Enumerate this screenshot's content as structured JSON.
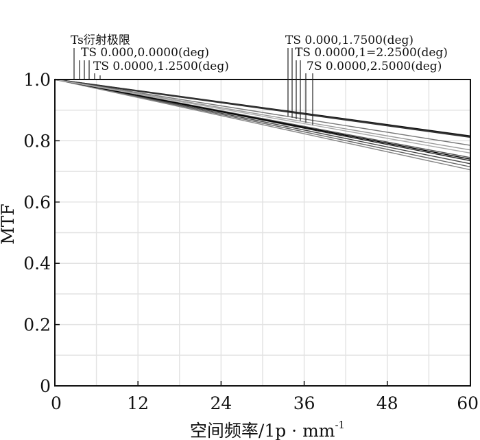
{
  "chart_data": {
    "type": "line",
    "title": "",
    "xlabel": "空间频率/1p · mm",
    "xlabel_superscript": "-1",
    "ylabel": "MTF",
    "xlim": [
      0,
      60
    ],
    "ylim": [
      0,
      1.0
    ],
    "x_ticks": [
      0,
      12,
      24,
      36,
      48,
      60
    ],
    "x_tick_labels": [
      "0",
      "12",
      "24",
      "36",
      "48",
      "60"
    ],
    "y_ticks": [
      0,
      0.2,
      0.4,
      0.6,
      0.8,
      1.0
    ],
    "y_tick_labels": [
      "0",
      "0.2",
      "0.4",
      "0.6",
      "0.8",
      "1.0"
    ],
    "grid": true,
    "legend_position": "top",
    "legend_left": [
      "Ts衍射极限",
      "TS 0.000,0.0000(deg)",
      "TS 0.0000,1.2500(deg)"
    ],
    "legend_right": [
      "TS 0.000,1.7500(deg)",
      "TS 0.0000,1=2.2500(deg)",
      "7S 0.0000,2.5000(deg)"
    ],
    "series": [
      {
        "x": [
          0,
          60
        ],
        "y": [
          1.0,
          0.815
        ],
        "color": "#111111"
      },
      {
        "x": [
          0,
          60
        ],
        "y": [
          1.0,
          0.812
        ],
        "color": "#333333"
      },
      {
        "x": [
          0,
          60
        ],
        "y": [
          1.0,
          0.785
        ],
        "color": "#777777"
      },
      {
        "x": [
          0,
          60
        ],
        "y": [
          1.0,
          0.77
        ],
        "color": "#999999"
      },
      {
        "x": [
          0,
          60
        ],
        "y": [
          1.0,
          0.745
        ],
        "color": "#555555"
      },
      {
        "x": [
          0,
          60
        ],
        "y": [
          1.0,
          0.735
        ],
        "color": "#222222"
      },
      {
        "x": [
          0,
          60
        ],
        "y": [
          1.0,
          0.725
        ],
        "color": "#444444"
      },
      {
        "x": [
          0,
          60
        ],
        "y": [
          1.0,
          0.715
        ],
        "color": "#666666"
      },
      {
        "x": [
          0,
          60
        ],
        "y": [
          1.0,
          0.705
        ],
        "color": "#888888"
      },
      {
        "x": [
          0,
          60
        ],
        "y": [
          1.0,
          0.74
        ],
        "color": "#000000"
      },
      {
        "x": [
          0,
          60
        ],
        "y": [
          1.0,
          0.76
        ],
        "color": "#aaaaaa"
      }
    ]
  }
}
